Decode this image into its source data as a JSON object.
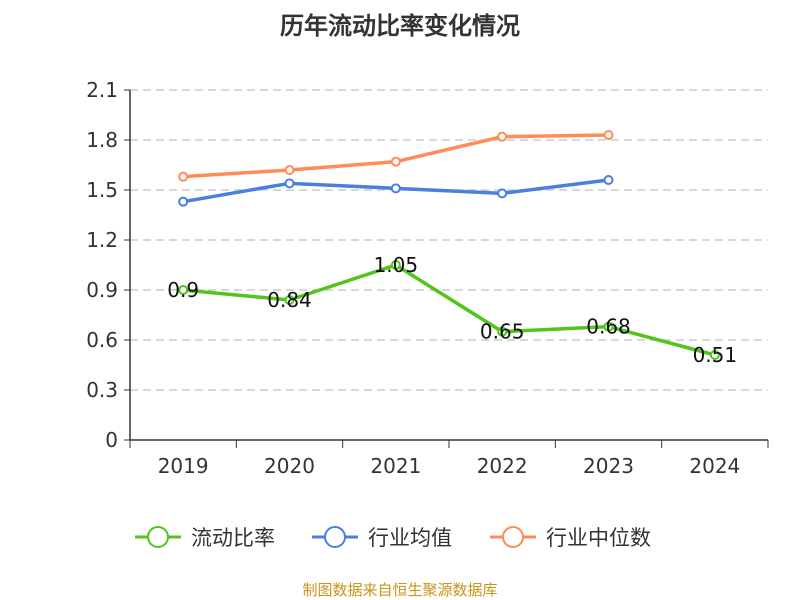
{
  "chart_data": {
    "type": "line",
    "title": "历年流动比率变化情况",
    "categories": [
      "2019",
      "2020",
      "2021",
      "2022",
      "2023",
      "2024"
    ],
    "ylim": [
      0,
      2.1
    ],
    "yticks": [
      "0",
      "0.3",
      "0.6",
      "0.9",
      "1.2",
      "1.5",
      "1.8",
      "2.1"
    ],
    "grid": true,
    "legend_position": "bottom",
    "series": [
      {
        "name": "流动比率",
        "color": "#52c41a",
        "values": [
          0.9,
          0.84,
          1.05,
          0.65,
          0.68,
          0.51
        ],
        "labels": [
          "0.9",
          "0.84",
          "1.05",
          "0.65",
          "0.68",
          "0.51"
        ]
      },
      {
        "name": "行业均值",
        "color": "#4a7ee3",
        "values": [
          1.43,
          1.54,
          1.51,
          1.48,
          1.56,
          null
        ]
      },
      {
        "name": "行业中位数",
        "color": "#ff8c55",
        "values": [
          1.58,
          1.62,
          1.67,
          1.82,
          1.83,
          null
        ]
      }
    ]
  },
  "source": "制图数据来自恒生聚源数据库"
}
